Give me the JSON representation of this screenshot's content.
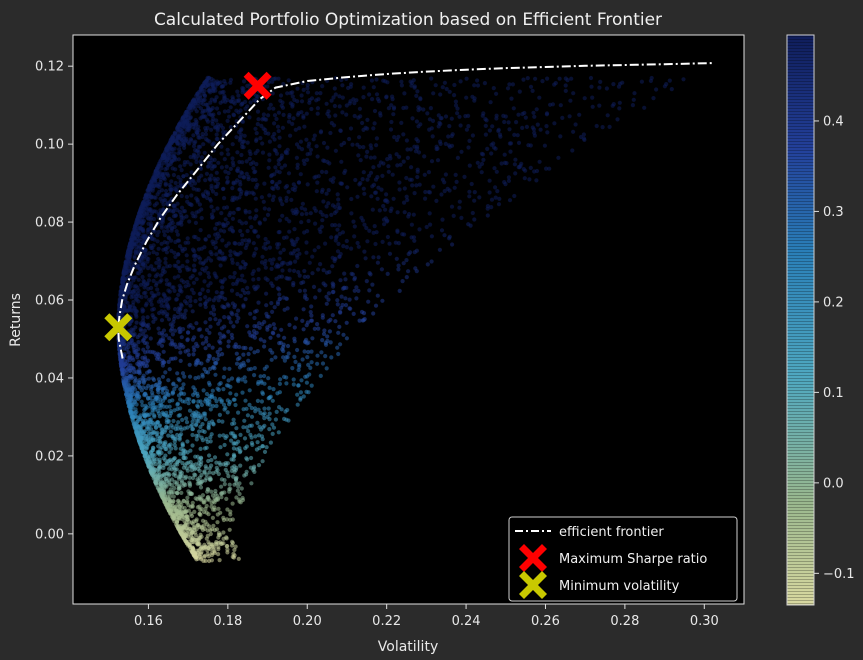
{
  "chart_data": {
    "type": "scatter",
    "title": "Calculated Portfolio Optimization based on Efficient Frontier",
    "xlabel": "Volatility",
    "ylabel": "Returns",
    "xlim": [
      0.141,
      0.31
    ],
    "ylim": [
      -0.018,
      0.128
    ],
    "x_ticks": [
      0.16,
      0.18,
      0.2,
      0.22,
      0.24,
      0.26,
      0.28,
      0.3
    ],
    "x_tick_labels": [
      "0.16",
      "0.18",
      "0.20",
      "0.22",
      "0.24",
      "0.26",
      "0.28",
      "0.30"
    ],
    "y_ticks": [
      0.0,
      0.02,
      0.04,
      0.06,
      0.08,
      0.1,
      0.12
    ],
    "y_tick_labels": [
      "0.00",
      "0.02",
      "0.04",
      "0.06",
      "0.08",
      "0.10",
      "0.12"
    ],
    "colorbar": {
      "colormap": "YlGnBu",
      "range": [
        -0.135,
        0.495
      ],
      "ticks": [
        -0.1,
        0.0,
        0.1,
        0.2,
        0.3,
        0.4
      ],
      "tick_labels": [
        "−0.1",
        "0.0",
        "0.1",
        "0.2",
        "0.3",
        "0.4"
      ]
    },
    "series": [
      {
        "name": "efficient frontier",
        "kind": "line",
        "style": "dash-dot",
        "color": "#ffffff",
        "x": [
          0.1535,
          0.1525,
          0.1524,
          0.1527,
          0.1534,
          0.1546,
          0.1566,
          0.1595,
          0.163,
          0.1672,
          0.172,
          0.1775,
          0.183,
          0.188,
          0.192,
          0.2,
          0.21,
          0.22,
          0.23,
          0.24,
          0.25,
          0.26,
          0.27,
          0.28,
          0.29,
          0.302
        ],
        "y": [
          0.045,
          0.05,
          0.053,
          0.056,
          0.06,
          0.064,
          0.069,
          0.075,
          0.081,
          0.087,
          0.093,
          0.1,
          0.106,
          0.1115,
          0.1145,
          0.1162,
          0.1172,
          0.118,
          0.1186,
          0.1191,
          0.1195,
          0.1198,
          0.1201,
          0.1203,
          0.1205,
          0.1208
        ]
      },
      {
        "name": "Maximum Sharpe ratio",
        "kind": "marker",
        "marker": "X",
        "color": "#ff0000",
        "x": [
          0.1875
        ],
        "y": [
          0.115
        ]
      },
      {
        "name": "Minimum volatility",
        "kind": "marker",
        "marker": "X",
        "color": "#c8c800",
        "x": [
          0.1524
        ],
        "y": [
          0.053
        ]
      }
    ],
    "simulated_portfolios": {
      "count": 5000,
      "color_by": "sharpe_ratio",
      "return_range": [
        -0.007,
        0.117
      ],
      "volatility_range": [
        0.1524,
        0.289
      ]
    },
    "legend": {
      "placement": "lower-right",
      "entries": [
        "efficient frontier",
        "Maximum Sharpe ratio",
        "Minimum volatility"
      ]
    },
    "grid": false
  }
}
